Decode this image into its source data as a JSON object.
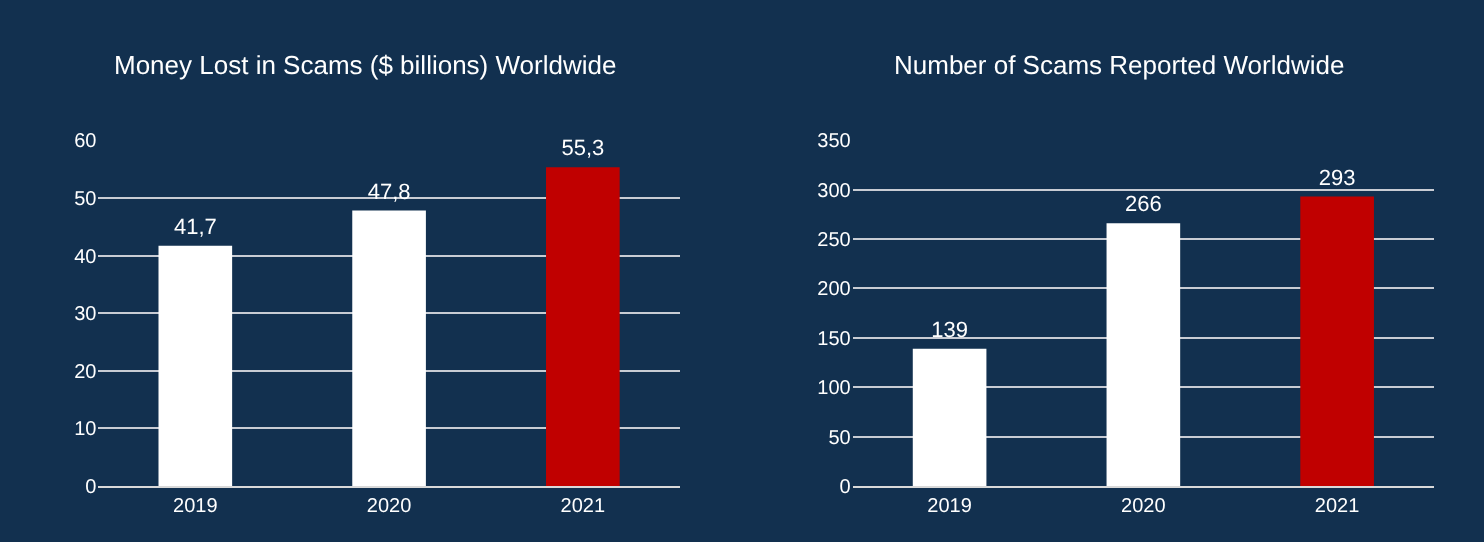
{
  "chart_data": [
    {
      "type": "bar",
      "title": "Money Lost in Scams ($ billions) Worldwide",
      "categories": [
        "2019",
        "2020",
        "2021"
      ],
      "values": [
        41.7,
        47.8,
        55.3
      ],
      "value_labels": [
        "41,7",
        "47,8",
        "55,3"
      ],
      "colors": [
        "#ffffff",
        "#ffffff",
        "#c00000"
      ],
      "ylim": [
        0,
        60
      ],
      "yticks": [
        0,
        10,
        20,
        30,
        40,
        50,
        60
      ],
      "grid": "y"
    },
    {
      "type": "bar",
      "title": "Number of Scams Reported Worldwide",
      "categories": [
        "2019",
        "2020",
        "2021"
      ],
      "values": [
        139,
        266,
        293
      ],
      "data_labels": true,
      "colors": [
        "#ffffff",
        "#ffffff",
        "#c00000"
      ],
      "ylim": [
        0,
        350
      ],
      "yticks": [
        0,
        50,
        100,
        150,
        200,
        250,
        300,
        350
      ],
      "grid": "y"
    }
  ]
}
